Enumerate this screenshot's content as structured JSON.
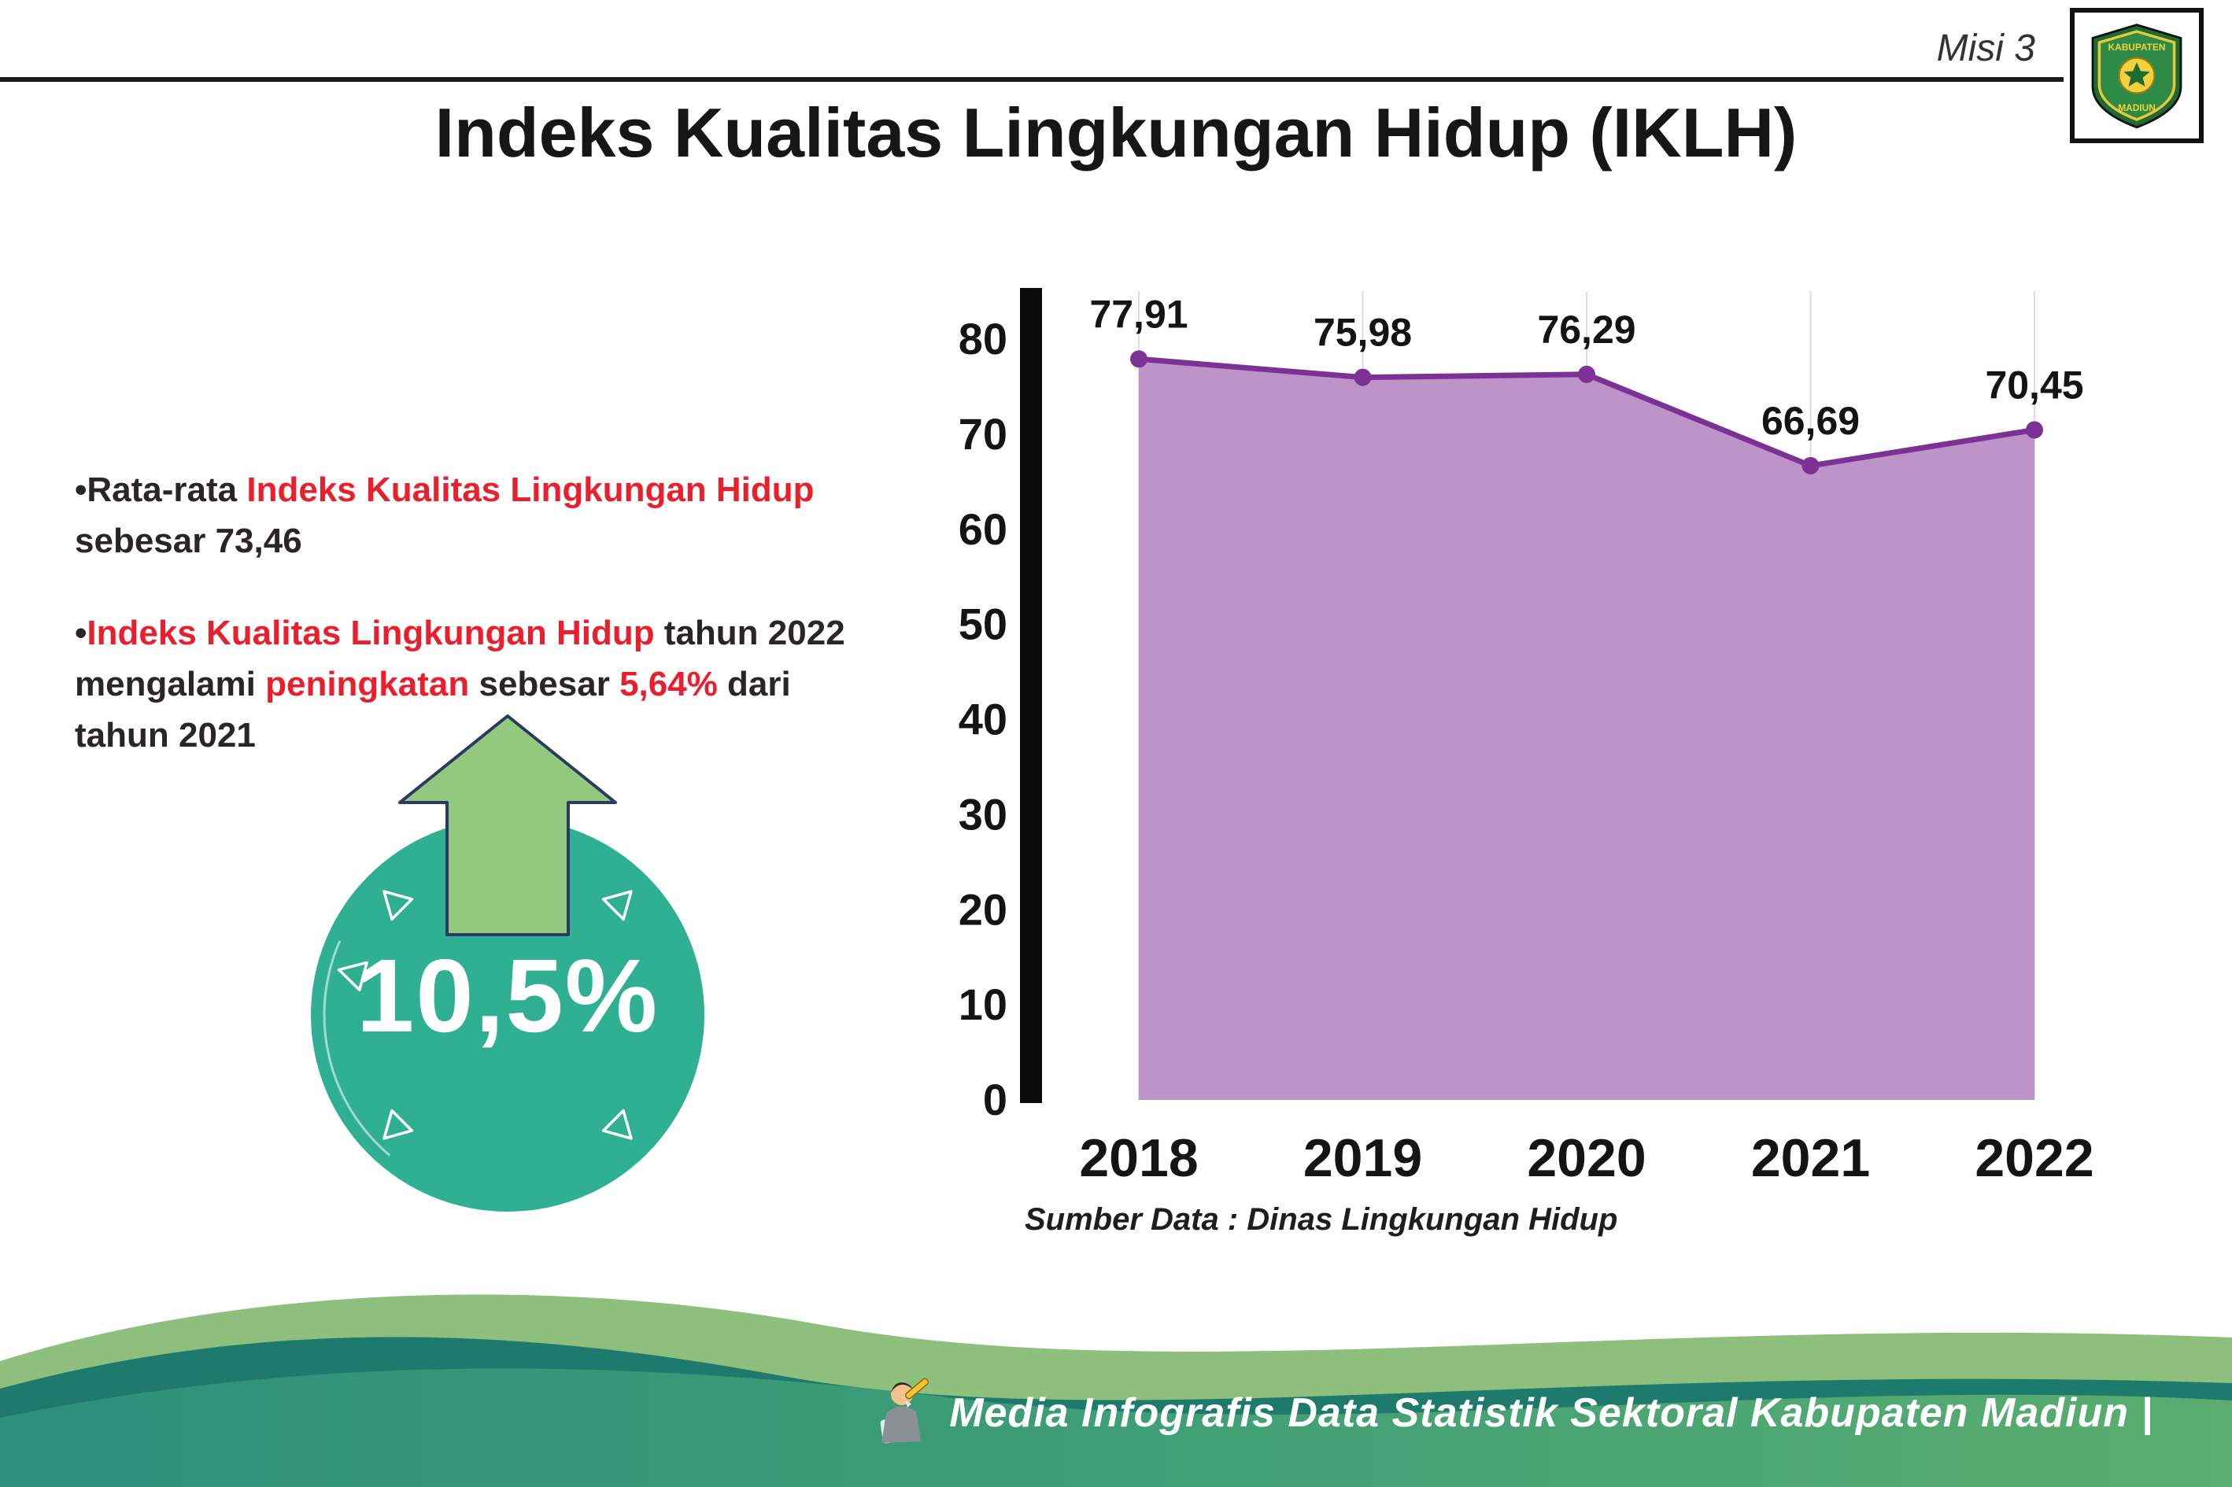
{
  "header": {
    "misi_label": "Misi 3",
    "logo": {
      "top_text": "KABUPATEN",
      "bottom_text": "MADIUN"
    }
  },
  "title": "Indeks Kualitas Lingkungan Hidup (IKLH)",
  "bullets": {
    "dot": "•",
    "b1_prefix": "Rata-rata ",
    "b1_red": "Indeks Kualitas Lingkungan Hidup",
    "b1_line2": "sebesar 73,46",
    "b2_red1": "Indeks Kualitas Lingkungan Hidup",
    "b2_t1": " tahun 2022",
    "b2_t2": "mengalami ",
    "b2_red2": "peningkatan",
    "b2_t3": " sebesar ",
    "b2_red3": "5,64%",
    "b2_t4": " dari",
    "b2_line3": "tahun 2021"
  },
  "badge": {
    "value": "10,5%",
    "circle_color": "#2fb092",
    "arrow_color": "#92c97e"
  },
  "chart_data": {
    "type": "area",
    "title": "Indeks Kualitas Lingkungan Hidup (IKLH)",
    "categories": [
      "2018",
      "2019",
      "2020",
      "2021",
      "2022"
    ],
    "values": [
      77.91,
      75.98,
      76.29,
      66.69,
      70.45
    ],
    "value_labels": [
      "77,91",
      "75,98",
      "76,29",
      "66,69",
      "70,45"
    ],
    "ylim": [
      0,
      80
    ],
    "yticks": [
      0,
      10,
      20,
      30,
      40,
      50,
      60,
      70,
      80
    ],
    "grid": "vertical-light",
    "legend": "none",
    "line_color": "#7b3294",
    "fill_color": "#bd93c8",
    "marker_color": "#7b3294",
    "source_note": "Sumber Data : Dinas Lingkungan Hidup"
  },
  "footer": {
    "text": "Media Infografis Data Statistik Sektoral Kabupaten Madiun |"
  }
}
